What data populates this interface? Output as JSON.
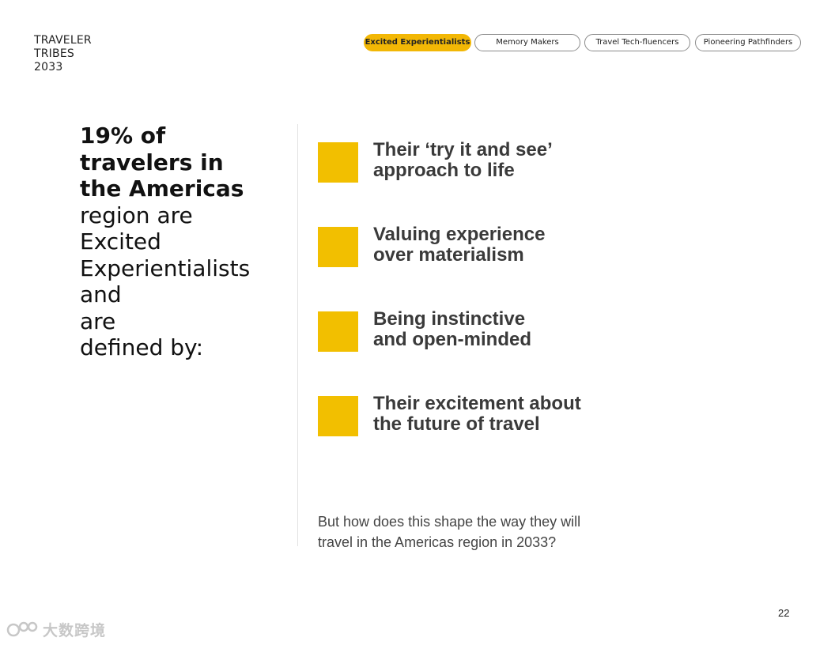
{
  "brand": {
    "lines": [
      "TRAVELER",
      "TRIBES",
      "2033"
    ]
  },
  "tabs": [
    {
      "label": "Excited Experientialists",
      "active": true
    },
    {
      "label": "Memory Makers",
      "active": false
    },
    {
      "label": "Travel Tech-fluencers",
      "active": false
    },
    {
      "label": "Pioneering Pathfinders",
      "active": false
    }
  ],
  "headline": {
    "bold_lines": [
      "19% of",
      "travelers in",
      "the Americas"
    ],
    "light_lines": [
      "region are",
      "Excited",
      "Experientialists and",
      "are",
      "defined by:"
    ]
  },
  "traits": [
    {
      "lines": [
        "Their ‘try it and see’",
        "approach to life"
      ]
    },
    {
      "lines": [
        "Valuing experience",
        "over materialism"
      ]
    },
    {
      "lines": [
        "Being instinctive",
        "and open-minded"
      ]
    },
    {
      "lines": [
        "Their excitement about",
        "the future of travel"
      ]
    }
  ],
  "question": {
    "lines": [
      "But how does this shape the way they will",
      "travel in the Americas region in 2033?"
    ]
  },
  "page_number": "22",
  "watermark": {
    "text": "大数跨境",
    "icon": "logo-icon"
  },
  "colors": {
    "accent": "#f2bf00",
    "tab_active": "#f2b705"
  }
}
